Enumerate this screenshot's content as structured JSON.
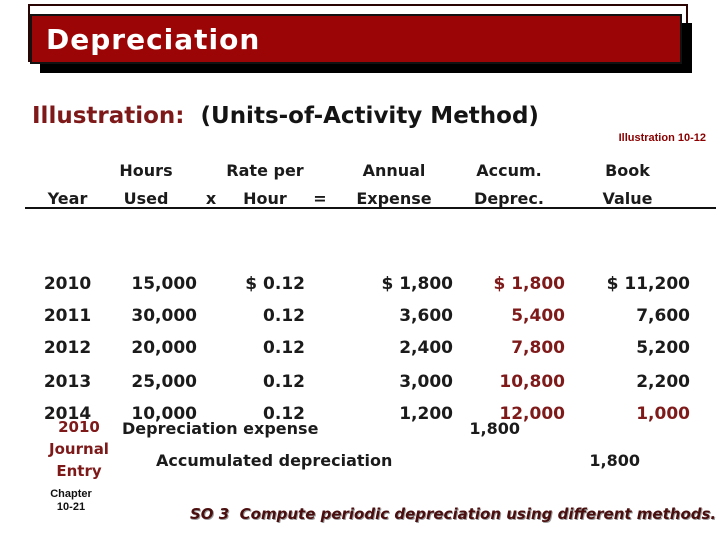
{
  "title_bar": {
    "title": "Depreciation"
  },
  "heading": {
    "label": "Illustration:",
    "method": "(Units-of-Activity Method)",
    "ref": "Illustration 10-12"
  },
  "table": {
    "col_headers": [
      {
        "line1": "",
        "line2": "Year"
      },
      {
        "line1": "Hours",
        "line2": "Used"
      },
      {
        "line1": "",
        "line2": "x"
      },
      {
        "line1": "Rate per",
        "line2": "Hour"
      },
      {
        "line1": "",
        "line2": "="
      },
      {
        "line1": "Annual",
        "line2": "Expense"
      },
      {
        "line1": "Accum.",
        "line2": "Deprec."
      },
      {
        "line1": "Book",
        "line2": "Value"
      }
    ],
    "rows": [
      {
        "year": "2010",
        "hours": "15,000",
        "rate": "$ 0.12",
        "annual": "$ 1,800",
        "accum": "$ 1,800",
        "book": "$ 11,200"
      },
      {
        "year": "2011",
        "hours": "30,000",
        "rate": "0.12",
        "annual": "3,600",
        "accum": "5,400",
        "book": "7,600"
      },
      {
        "year": "2012",
        "hours": "20,000",
        "rate": "0.12",
        "annual": "2,400",
        "accum": "7,800",
        "book": "5,200"
      },
      {
        "year": "2013",
        "hours": "25,000",
        "rate": "0.12",
        "annual": "3,000",
        "accum": "10,800",
        "book": "2,200"
      },
      {
        "year": "2014",
        "hours": "10,000",
        "rate": "0.12",
        "annual": "1,200",
        "accum": "12,000",
        "book": "1,000"
      }
    ]
  },
  "journal": {
    "label_lines": [
      "2010",
      "Journal",
      "Entry"
    ],
    "debit_account": "Depreciation expense",
    "debit_amount": "1,800",
    "credit_account": "Accumulated depreciation",
    "credit_amount": "1,800"
  },
  "footer": {
    "chapter_line1": "Chapter",
    "chapter_line2": "10-21",
    "so_text": "SO 3  Compute periodic depreciation using different methods."
  },
  "colors": {
    "title_bar_red": "#9C0505",
    "dark_red_text": "#7E1919",
    "table_red_values": "#7F1A1A",
    "ref_red": "#8B0000",
    "so_text_red": "#4A0E0E"
  }
}
